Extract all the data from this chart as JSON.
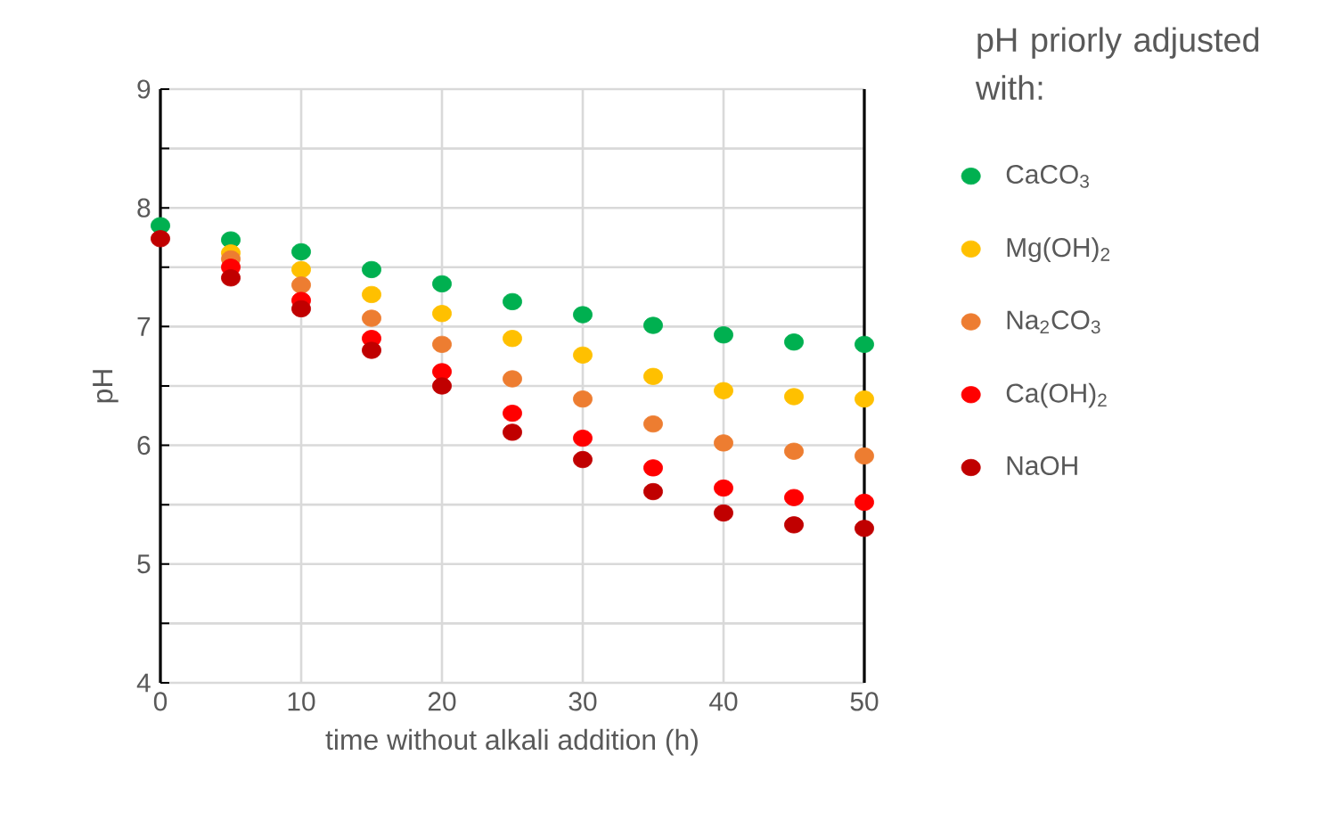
{
  "chart_data": {
    "type": "scatter",
    "xlabel": "time without alkali addition (h)",
    "ylabel": "pH",
    "legend_title": "pH priorly adjusted with:",
    "legend": "right",
    "grid": true,
    "marker": "circle",
    "x": [
      0,
      5,
      10,
      15,
      20,
      25,
      30,
      35,
      40,
      45,
      50
    ],
    "xlim": [
      0,
      50
    ],
    "ylim": [
      4,
      9
    ],
    "xticks": [
      0,
      10,
      20,
      30,
      40,
      50
    ],
    "yticks": [
      4,
      5,
      6,
      7,
      8,
      9
    ],
    "series": [
      {
        "name": "CaCO$_{3}$",
        "color": "#00b050",
        "values": [
          7.85,
          7.73,
          7.63,
          7.48,
          7.36,
          7.21,
          7.1,
          7.01,
          6.93,
          6.87,
          6.85
        ]
      },
      {
        "name": "Mg(OH)$_{2}$",
        "color": "#ffc000",
        "values": [
          null,
          7.62,
          7.48,
          7.27,
          7.11,
          6.9,
          6.76,
          6.58,
          6.46,
          6.41,
          6.39
        ]
      },
      {
        "name": "Na$_{2}$CO$_{3}$",
        "color": "#ed7d31",
        "values": [
          null,
          7.57,
          7.35,
          7.07,
          6.85,
          6.56,
          6.39,
          6.18,
          6.02,
          5.95,
          5.91
        ]
      },
      {
        "name": "Ca(OH)$_{2}$",
        "color": "#ff0000",
        "values": [
          null,
          7.5,
          7.22,
          6.9,
          6.62,
          6.27,
          6.06,
          5.81,
          5.64,
          5.56,
          5.52
        ]
      },
      {
        "name": "NaOH",
        "color": "#c00000",
        "values": [
          7.74,
          7.41,
          7.15,
          6.8,
          6.5,
          6.11,
          5.88,
          5.61,
          5.43,
          5.33,
          5.3
        ]
      }
    ]
  }
}
